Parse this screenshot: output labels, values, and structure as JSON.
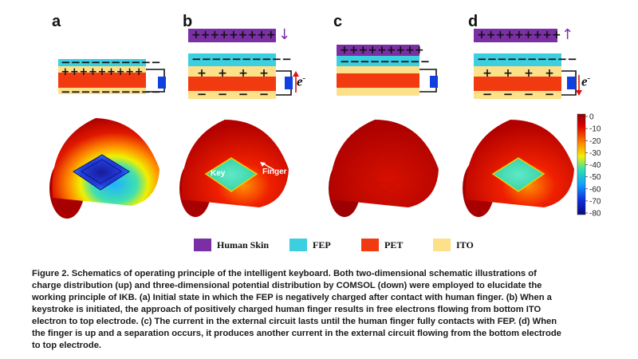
{
  "panels": [
    {
      "label": "a",
      "finger_arrow": ""
    },
    {
      "label": "b",
      "finger_arrow": "↓"
    },
    {
      "label": "c",
      "finger_arrow": ""
    },
    {
      "label": "d",
      "finger_arrow": "↑"
    }
  ],
  "charges": {
    "plus": "+",
    "minus": "−",
    "electron": "e",
    "electron_sup": "-"
  },
  "annotations": {
    "key": "Key",
    "finger": "Finger"
  },
  "colorbar": {
    "ticks": [
      "0",
      "-10",
      "-20",
      "-30",
      "-40",
      "-50",
      "-60",
      "-70",
      "-80"
    ]
  },
  "legend": [
    {
      "label": "Human Skin",
      "color": "#7b2fa5"
    },
    {
      "label": "FEP",
      "color": "#3ccfe0"
    },
    {
      "label": "PET",
      "color": "#f23a10"
    },
    {
      "label": "ITO",
      "color": "#fde08a"
    }
  ],
  "caption": {
    "lines": [
      "Figure 2.  Schematics of operating principle of the intelligent keyboard. Both two-dimensional schematic illustrations of",
      "charge distribution (up) and three-dimensional potential distribution by COMSOL (down) were employed to elucidate the",
      "working principle of IKB. (a) Initial state in which the FEP is negatively charged after contact with human finger. (b) When a",
      "keystroke is initiated, the approach of positively charged human finger results in free electrons flowing from bottom ITO",
      "electron to top electrode. (c) The current in the external circuit lasts until the human finger fully contacts with FEP. (d) When",
      "the finger is up and a separation occurs, it produces another current in the external circuit flowing from the bottom electrode",
      "to top electrode."
    ]
  }
}
